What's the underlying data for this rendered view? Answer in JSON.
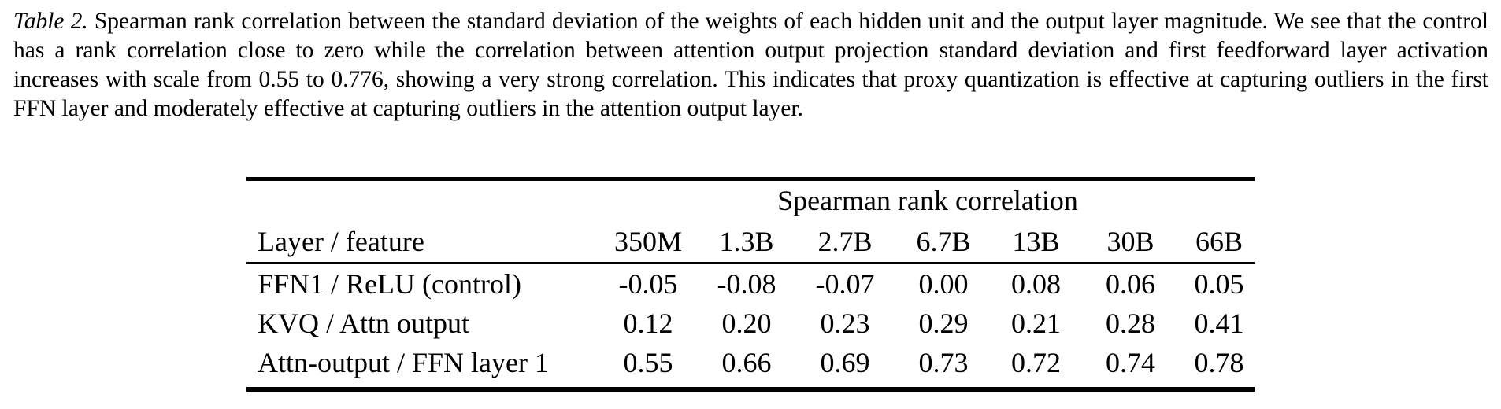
{
  "caption": {
    "label": "Table 2.",
    "text": "Spearman rank correlation between the standard deviation of the weights of each hidden unit and the output layer magnitude. We see that the control has a rank correlation close to zero while the correlation between attention output projection standard deviation and first feedforward layer activation increases with scale from 0.55 to 0.776, showing a very strong correlation. This indicates that proxy quantization is effective at capturing outliers in the first FFN layer and moderately effective at capturing outliers in the attention output layer."
  },
  "chart_data": {
    "type": "table",
    "title": "Spearman rank correlation",
    "categories": [
      "350M",
      "1.3B",
      "2.7B",
      "6.7B",
      "13B",
      "30B",
      "66B"
    ],
    "series": [
      {
        "name": "FFN1 / ReLU (control)",
        "values": [
          -0.05,
          -0.08,
          -0.07,
          0.0,
          0.08,
          0.06,
          0.05
        ]
      },
      {
        "name": "KVQ / Attn output",
        "values": [
          0.12,
          0.2,
          0.23,
          0.29,
          0.21,
          0.28,
          0.41
        ]
      },
      {
        "name": "Attn-output / FFN layer 1",
        "values": [
          0.55,
          0.66,
          0.69,
          0.73,
          0.72,
          0.74,
          0.78
        ]
      }
    ]
  },
  "table": {
    "group_header": "Spearman rank correlation",
    "columns": [
      "Layer / feature",
      "350M",
      "1.3B",
      "2.7B",
      "6.7B",
      "13B",
      "30B",
      "66B"
    ],
    "rows": [
      {
        "feature": "FFN1 / ReLU (control)",
        "values": [
          "-0.05",
          "-0.08",
          "-0.07",
          "0.00",
          "0.08",
          "0.06",
          "0.05"
        ]
      },
      {
        "feature": "KVQ / Attn output",
        "values": [
          "0.12",
          "0.20",
          "0.23",
          "0.29",
          "0.21",
          "0.28",
          "0.41"
        ]
      },
      {
        "feature": "Attn-output / FFN layer 1",
        "values": [
          "0.55",
          "0.66",
          "0.69",
          "0.73",
          "0.72",
          "0.74",
          "0.78"
        ]
      }
    ]
  },
  "colors": {
    "text": "#000000",
    "background": "#ffffff",
    "rule": "#000000"
  }
}
